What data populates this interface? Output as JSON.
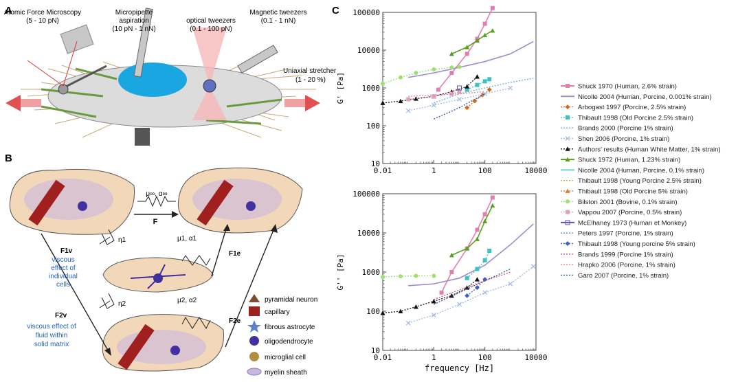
{
  "panels": {
    "a": {
      "letter": "A",
      "labels": {
        "afm": "Atomic Force Microscopy",
        "afm_range": "(5 - 10 pN)",
        "pip": "Micropipette",
        "pip2": "aspiration",
        "pip_range": "(10 pN - 1 nN)",
        "opt": "optical tweezers",
        "opt_range": "(0.1 - 100 pN)",
        "mag": "Magnetic tweezers",
        "mag_range": "(0.1 - 1 nN)",
        "uni": "Uniaxial stretcher",
        "uni_range": "(1 - 20 %)"
      }
    },
    "b": {
      "letter": "B",
      "labels": {
        "top_param": "μ∞, α∞",
        "F": "F",
        "eta1": "η1",
        "F1v": "F1v",
        "visc1_l1": "viscous",
        "visc1_l2": "effect of",
        "visc1_l3": "individual",
        "visc1_l4": "cells",
        "mu1": "μ1, α1",
        "F1e": "F1e",
        "eta2": "η2",
        "F2v": "F2v",
        "visc2_l1": "viscous effect of",
        "visc2_l2": "fluid within",
        "visc2_l3": "solid matrix",
        "mu2": "μ2, α2",
        "F2e": "F2e"
      },
      "legend": [
        "pyramidal neuron",
        "capillary",
        "fibrous astrocyte",
        "oligodendrocyte",
        "microglial cell",
        "myelin sheath"
      ]
    },
    "c": {
      "letter": "C",
      "top_ylabel": "G' [Pa]",
      "bottom_ylabel": "G'' [Pa]",
      "xlabel": "frequency [Hz]",
      "xticks": [
        "0.01",
        "1",
        "100",
        "10000"
      ],
      "yticks": [
        "10",
        "100",
        "1000",
        "10000",
        "100000"
      ],
      "legend": [
        {
          "label": "Shuck 1970 (Human, 2.6% strain)",
          "color": "#e080b0",
          "style": "solid",
          "marker": "square"
        },
        {
          "label": "Nicolle 2004 (Human, Porcine, 0.001% strain)",
          "color": "#9b8ed0",
          "style": "solid",
          "marker": "none"
        },
        {
          "label": "Arbogast 1997 (Porcine, 2.5% strain)",
          "color": "#d2691e",
          "style": "dotted",
          "marker": "diamond"
        },
        {
          "label": "Thibault 1998 (Old Porcine 2.5% strain)",
          "color": "#40c0c0",
          "style": "dotted",
          "marker": "square"
        },
        {
          "label": "Brands 2000 (Porcine 1% strain)",
          "color": "#60b0e0",
          "style": "dotted",
          "marker": "none"
        },
        {
          "label": "Shen 2006 (Porcine, 1% strain)",
          "color": "#a0b8e0",
          "style": "dotted",
          "marker": "x"
        },
        {
          "label": "Authors' results (Human White Matter, 1% strain)",
          "color": "#111111",
          "style": "dotted",
          "marker": "triangle"
        },
        {
          "label": "Shuck 1972 (Human, 1.23% strain)",
          "color": "#5aa020",
          "style": "solid",
          "marker": "triangle"
        },
        {
          "label": "Nicolle 2004 (Human, Porcine, 0.1% strain)",
          "color": "#70d0d0",
          "style": "solid",
          "marker": "none"
        },
        {
          "label": "Thibault 1998 (Young Porcine 2.5% strain)",
          "color": "#a0c040",
          "style": "dotted",
          "marker": "none"
        },
        {
          "label": "Thibault 1998 (Old Porcine 5% strain)",
          "color": "#e08040",
          "style": "dotted",
          "marker": "triangle"
        },
        {
          "label": "Bilston 2001 (Bovine, 0.1% strain)",
          "color": "#a0e070",
          "style": "dotted",
          "marker": "circle"
        },
        {
          "label": "Vappou 2007 (Porcine, 0.5% strain)",
          "color": "#e0a0c0",
          "style": "dotted",
          "marker": "square"
        },
        {
          "label": "McElhaney 1973 (Human et Monkey)",
          "color": "#6050b0",
          "style": "solid",
          "marker": "square-open"
        },
        {
          "label": "Peters 1997 (Porcine, 1% strain)",
          "color": "#4090d0",
          "style": "dotted",
          "marker": "none"
        },
        {
          "label": "Thibault 1998 (Young porcine 5% strain)",
          "color": "#4060c0",
          "style": "dotted",
          "marker": "diamond"
        },
        {
          "label": "Brands 1999 (Porcine 1% strain)",
          "color": "#d05070",
          "style": "dotted",
          "marker": "none"
        },
        {
          "label": "Hrapko 2006 (Porcine, 1% strain)",
          "color": "#e08090",
          "style": "dotted",
          "marker": "none"
        },
        {
          "label": "Garo 2007 (Porcine, 1% strain)",
          "color": "#3050a0",
          "style": "dotted",
          "marker": "none"
        }
      ]
    }
  },
  "chart_data": [
    {
      "type": "line",
      "title": "",
      "ylabel": "G' [Pa]",
      "xlabel": "frequency [Hz]",
      "xscale": "log",
      "yscale": "log",
      "xlim": [
        0.01,
        10000
      ],
      "ylim": [
        10,
        100000
      ],
      "series": [
        {
          "name": "Shuck 1970 (Human, 2.6% strain)",
          "x": [
            1.5,
            5,
            20,
            50,
            100,
            200
          ],
          "y": [
            900,
            2500,
            8000,
            20000,
            50000,
            130000
          ]
        },
        {
          "name": "Nicolle 2004 (Human, Porcine, 0.001% strain)",
          "x": [
            0.1,
            1,
            10,
            100,
            1000,
            8000
          ],
          "y": [
            1900,
            2500,
            3500,
            5000,
            8000,
            17000
          ]
        },
        {
          "name": "Arbogast 1997 (Porcine, 2.5% strain)",
          "x": [
            20,
            40,
            80,
            150
          ],
          "y": [
            300,
            450,
            650,
            900
          ]
        },
        {
          "name": "Thibault 1998 (Old Porcine 2.5% strain)",
          "x": [
            20,
            50,
            100,
            150
          ],
          "y": [
            900,
            1200,
            1500,
            1700
          ]
        },
        {
          "name": "Brands 2000 (Porcine 1% strain)",
          "x": [
            1,
            10,
            100,
            1000,
            8000
          ],
          "y": [
            400,
            700,
            1000,
            1400,
            1800
          ]
        },
        {
          "name": "Shen 2006 (Porcine, 1% strain)",
          "x": [
            0.1,
            1,
            10,
            100,
            1000
          ],
          "y": [
            250,
            350,
            500,
            700,
            1000
          ]
        },
        {
          "name": "Authors' results (Human White Matter, 1% strain)",
          "x": [
            0.01,
            0.05,
            0.2,
            1,
            5,
            20,
            50
          ],
          "y": [
            400,
            450,
            520,
            600,
            800,
            1100,
            2000
          ]
        },
        {
          "name": "Shuck 1972 (Human, 1.23% strain)",
          "x": [
            5,
            20,
            50,
            100,
            200
          ],
          "y": [
            8000,
            12000,
            18000,
            25000,
            33000
          ]
        },
        {
          "name": "Bilston 2001 (Bovine, 0.1% strain)",
          "x": [
            0.01,
            0.05,
            0.2,
            1,
            5,
            10
          ],
          "y": [
            1300,
            1900,
            2500,
            3100,
            3500,
            3600
          ]
        },
        {
          "name": "Vappou 2007 (Porcine, 0.5% strain)",
          "x": [
            0.1,
            1,
            5,
            10
          ],
          "y": [
            500,
            600,
            700,
            800
          ]
        },
        {
          "name": "McElhaney 1973 (Human et Monkey)",
          "x": [
            10
          ],
          "y": [
            1000
          ]
        },
        {
          "name": "Hrapko 2006 (Porcine, 1% strain)",
          "x": [
            0.1,
            1,
            10,
            100
          ],
          "y": [
            600,
            650,
            700,
            800
          ]
        },
        {
          "name": "Garo 2007 (Porcine, 1% strain)",
          "x": [
            1,
            10,
            100
          ],
          "y": [
            150,
            300,
            700
          ]
        }
      ]
    },
    {
      "type": "line",
      "title": "",
      "ylabel": "G'' [Pa]",
      "xlabel": "frequency [Hz]",
      "xscale": "log",
      "yscale": "log",
      "xlim": [
        0.01,
        10000
      ],
      "ylim": [
        10,
        100000
      ],
      "series": [
        {
          "name": "Shuck 1970 (Human, 2.6% strain)",
          "x": [
            2,
            5,
            20,
            50,
            100,
            200
          ],
          "y": [
            300,
            1000,
            4000,
            12000,
            30000,
            80000
          ]
        },
        {
          "name": "Nicolle 2004 (Human, Porcine, 0.001% strain)",
          "x": [
            0.1,
            1,
            10,
            100,
            1000,
            8000
          ],
          "y": [
            450,
            500,
            700,
            1500,
            5000,
            17000
          ]
        },
        {
          "name": "Thibault 1998 (Old Porcine 2.5% strain)",
          "x": [
            20,
            50,
            100,
            150
          ],
          "y": [
            700,
            1200,
            2000,
            3500
          ]
        },
        {
          "name": "Authors' results (Human White Matter, 1% strain)",
          "x": [
            0.01,
            0.05,
            0.2,
            1,
            5,
            20,
            50
          ],
          "y": [
            90,
            100,
            130,
            180,
            250,
            400,
            650
          ]
        },
        {
          "name": "Shuck 1972 (Human, 1.23% strain)",
          "x": [
            5,
            20,
            50,
            100,
            200
          ],
          "y": [
            2700,
            4000,
            7000,
            20000,
            50000
          ]
        },
        {
          "name": "Bilston 2001 (Bovine, 0.1% strain)",
          "x": [
            0.01,
            0.05,
            0.2,
            1
          ],
          "y": [
            750,
            780,
            800,
            800
          ]
        },
        {
          "name": "Shen 2006 (Porcine, 1% strain)",
          "x": [
            0.1,
            1,
            10,
            100,
            1000,
            8000
          ],
          "y": [
            50,
            80,
            150,
            300,
            500,
            1400
          ]
        },
        {
          "name": "Thibault 1998 (Young porcine 5% strain)",
          "x": [
            20,
            50,
            100
          ],
          "y": [
            250,
            400,
            650
          ]
        },
        {
          "name": "Garo 2007 (Porcine, 1% strain)",
          "x": [
            1,
            10,
            100,
            1000
          ],
          "y": [
            150,
            300,
            600,
            1200
          ]
        },
        {
          "name": "Brands 1999 (Porcine 1% strain)",
          "x": [
            1,
            10,
            100,
            1000
          ],
          "y": [
            200,
            350,
            600,
            1000
          ]
        }
      ]
    }
  ]
}
